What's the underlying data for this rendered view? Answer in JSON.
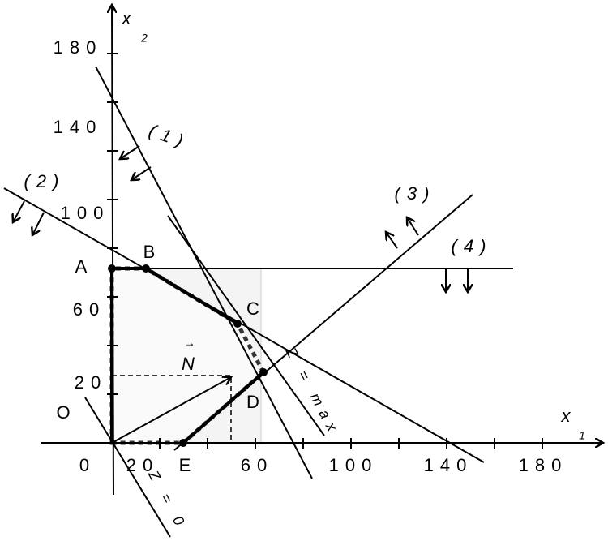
{
  "axes": {
    "x_label": "x",
    "x_subscript": "1",
    "y_label": "x",
    "y_subscript": "2",
    "x_ticks": [
      "0",
      "20",
      "60",
      "100",
      "140",
      "180"
    ],
    "y_ticks": [
      "180",
      "140",
      "100",
      "60",
      "20"
    ]
  },
  "origin": "O",
  "points": [
    "A",
    "B",
    "C",
    "D",
    "E"
  ],
  "constraints": [
    "(1)",
    "(2)",
    "(3)",
    "(4)"
  ],
  "vector": {
    "arrow": "→",
    "label": "N"
  },
  "lines": {
    "objective_max": "Z = max",
    "objective_zero": "Z = 0"
  }
}
